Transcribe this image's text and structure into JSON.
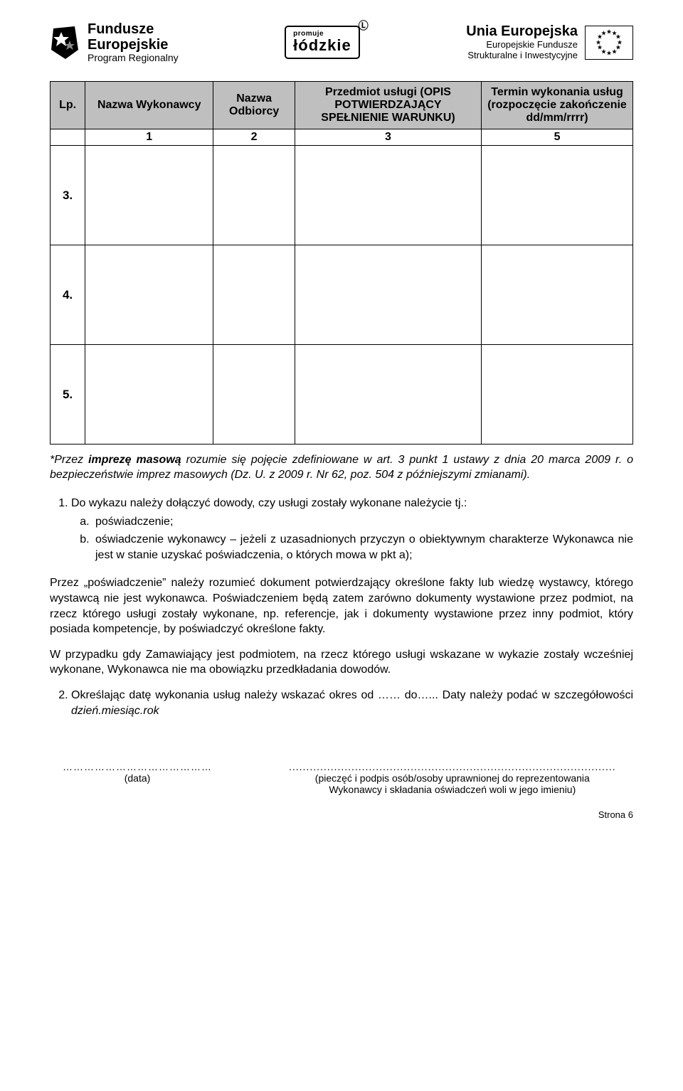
{
  "header": {
    "fe": {
      "line1": "Fundusze",
      "line2": "Europejskie",
      "line3": "Program Regionalny"
    },
    "lodzkie": {
      "small": "promuje",
      "big": "łódzkie",
      "corner": "Ⓛ"
    },
    "ue": {
      "line1": "Unia Europejska",
      "line2": "Europejskie Fundusze",
      "line3": "Strukturalne i Inwestycyjne"
    }
  },
  "table": {
    "headers": {
      "c1": "Lp.",
      "c2": "Nazwa Wykonawcy",
      "c3": "Nazwa Odbiorcy",
      "c4": "Przedmiot usługi (OPIS POTWIERDZAJĄCY SPEŁNIENIE WARUNKU)",
      "c5": "Termin wykonania usług (rozpoczęcie zakończenie dd/mm/rrrr)"
    },
    "numrow": {
      "c2": "1",
      "c3": "2",
      "c4": "3",
      "c5": "5"
    },
    "rows": [
      "3.",
      "4.",
      "5."
    ]
  },
  "note": {
    "lead": "*Przez ",
    "bold": "imprezę masową",
    "rest": " rozumie się pojęcie zdefiniowane w art. 3 punkt 1 ustawy z dnia 20 marca 2009 r. o bezpieczeństwie imprez masowych (Dz. U. z 2009 r. Nr 62, poz. 504 z późniejszymi zmianami)."
  },
  "list": {
    "item1_lead": "Do wykazu należy dołączyć dowody, czy usługi zostały wykonane należycie tj.:",
    "sub_a": "poświadczenie;",
    "sub_b": "oświadczenie wykonawcy – jeżeli z uzasadnionych przyczyn o obiektywnym charakterze  Wykonawca nie jest w stanie uzyskać poświadczenia, o których mowa w pkt a);",
    "para_after": "Przez „poświadczenie” należy rozumieć dokument potwierdzający określone fakty lub wiedzę wystawcy, którego wystawcą nie jest wykonawca. Poświadczeniem będą zatem zarówno dokumenty wystawione przez podmiot, na rzecz którego usługi zostały wykonane, np. referencje, jak i dokumenty wystawione przez inny podmiot, który posiada kompetencje, by poświadczyć określone fakty.",
    "para_after2": "W przypadku gdy Zamawiający jest podmiotem, na rzecz którego usługi wskazane w wykazie zostały wcześniej wykonane, Wykonawca nie ma obowiązku przedkładania dowodów.",
    "item2_a": "Określając datę wykonania usług należy wskazać okres od …… do…... Daty należy podać w szczegółowości ",
    "item2_b": "dzień.miesiąc.rok"
  },
  "sig": {
    "left_dots": "……………………………………",
    "left_label": "(data)",
    "right_dots": "..............................................................................................",
    "right_label1": "(pieczęć i podpis osób/osoby uprawnionej do reprezentowania",
    "right_label2": "Wykonawcy i składania oświadczeń woli w jego imieniu)"
  },
  "pagenum": "Strona 6"
}
